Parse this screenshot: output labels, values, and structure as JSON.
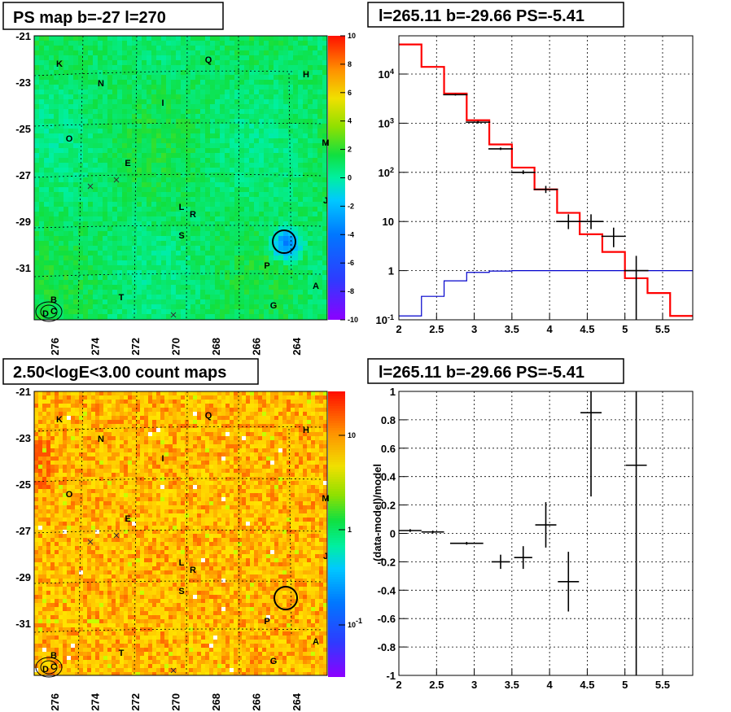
{
  "chart_data": [
    {
      "id": "ps-map",
      "type": "heatmap",
      "title": "PS map b=-27 l=270",
      "x_ticks": [
        "276",
        "274",
        "272",
        "270",
        "268",
        "266",
        "264"
      ],
      "y_ticks": [
        "-21",
        "-23",
        "-25",
        "-27",
        "-29",
        "-31"
      ],
      "colorbar": {
        "min": -10,
        "max": 10,
        "ticks": [
          "10",
          "8",
          "6",
          "4",
          "2",
          "0",
          "-2",
          "-4",
          "-6",
          "-8",
          "-10"
        ]
      },
      "source_labels": [
        "K",
        "Q",
        "H",
        "N",
        "I",
        "O",
        "M",
        "E",
        "J",
        "L",
        "R",
        "S",
        "P",
        "A",
        "T",
        "G",
        "B",
        "D",
        "C"
      ],
      "marked_source": {
        "l": 265.11,
        "b": -29.66
      }
    },
    {
      "id": "spectrum",
      "type": "line",
      "title": "l=265.11 b=-29.66 PS=-5.41",
      "log_y": true,
      "xlim": [
        2.0,
        5.9
      ],
      "ylim": [
        0.1,
        60000
      ],
      "x_ticks": [
        "2",
        "2.5",
        "3",
        "3.5",
        "4",
        "4.5",
        "5",
        "5.5"
      ],
      "y_ticks": [
        "10^-1",
        "1",
        "10",
        "10^2",
        "10^3",
        "10^4"
      ],
      "bin_edges": [
        2.0,
        2.3,
        2.6,
        2.9,
        3.2,
        3.5,
        3.8,
        4.1,
        4.4,
        4.7,
        5.0,
        5.3,
        5.6,
        5.9
      ],
      "model_total": [
        40000,
        14000,
        4000,
        1150,
        370,
        125,
        45,
        15,
        5.5,
        2.4,
        0.7,
        0.35,
        0.12
      ],
      "model_ps": [
        0.12,
        0.3,
        0.62,
        0.92,
        0.98,
        1.0,
        1.0,
        1.0,
        1.0,
        1.0,
        1.0,
        1.0,
        1.0
      ],
      "data_points": [
        {
          "x": 2.75,
          "y": 3800,
          "lo": 3650,
          "hi": 3950
        },
        {
          "x": 3.05,
          "y": 1050,
          "lo": 990,
          "hi": 1110
        },
        {
          "x": 3.35,
          "y": 300,
          "lo": 285,
          "hi": 320
        },
        {
          "x": 3.65,
          "y": 100,
          "lo": 92,
          "hi": 110
        },
        {
          "x": 3.95,
          "y": 45,
          "lo": 38,
          "hi": 53
        },
        {
          "x": 4.25,
          "y": 10,
          "lo": 7,
          "hi": 14
        },
        {
          "x": 4.55,
          "y": 10,
          "lo": 7,
          "hi": 14
        },
        {
          "x": 4.85,
          "y": 5,
          "lo": 3,
          "hi": 7.5
        },
        {
          "x": 5.15,
          "y": 1,
          "lo": 0.1,
          "hi": 2
        }
      ]
    },
    {
      "id": "count-map",
      "type": "heatmap",
      "title": "2.50<logE<3.00 count maps",
      "x_ticks": [
        "276",
        "274",
        "272",
        "270",
        "268",
        "266",
        "264"
      ],
      "y_ticks": [
        "-21",
        "-23",
        "-25",
        "-27",
        "-29",
        "-31"
      ],
      "colorbar": {
        "log": true,
        "ticks": [
          "10",
          "1",
          "10^-1"
        ]
      },
      "source_labels": [
        "K",
        "Q",
        "H",
        "N",
        "I",
        "O",
        "M",
        "E",
        "J",
        "L",
        "R",
        "S",
        "P",
        "A",
        "T",
        "G",
        "B",
        "D",
        "C"
      ]
    },
    {
      "id": "residual",
      "type": "scatter",
      "title": "l=265.11 b=-29.66 PS=-5.41",
      "ylabel": "(data-model)/model",
      "xlim": [
        2.0,
        5.9
      ],
      "ylim": [
        -1.0,
        1.0
      ],
      "x_ticks": [
        "2",
        "2.5",
        "3",
        "3.5",
        "4",
        "4.5",
        "5",
        "5.5"
      ],
      "y_ticks": [
        "1",
        "0.8",
        "0.6",
        "0.4",
        "0.2",
        "0",
        "-0.2",
        "-0.4",
        "-0.6",
        "-0.8",
        "-1"
      ],
      "points": [
        {
          "x": 2.15,
          "y": 0.02,
          "xerr": 0.15,
          "lo": 0.01,
          "hi": 0.03
        },
        {
          "x": 2.45,
          "y": 0.01,
          "xerr": 0.15,
          "lo": 0.0,
          "hi": 0.02
        },
        {
          "x": 2.9,
          "y": -0.07,
          "xerr": 0.22,
          "lo": -0.08,
          "hi": -0.06
        },
        {
          "x": 3.35,
          "y": -0.2,
          "xerr": 0.12,
          "lo": -0.25,
          "hi": -0.15
        },
        {
          "x": 3.65,
          "y": -0.17,
          "xerr": 0.12,
          "lo": -0.25,
          "hi": -0.09
        },
        {
          "x": 3.95,
          "y": 0.06,
          "xerr": 0.14,
          "lo": -0.1,
          "hi": 0.22
        },
        {
          "x": 4.25,
          "y": -0.34,
          "xerr": 0.14,
          "lo": -0.55,
          "hi": -0.13
        },
        {
          "x": 4.55,
          "y": 0.85,
          "xerr": 0.14,
          "lo": 0.26,
          "hi": 1.0
        },
        {
          "x": 5.15,
          "y": 0.48,
          "xerr": 0.14,
          "lo": -1.0,
          "hi": 1.0
        }
      ]
    }
  ]
}
